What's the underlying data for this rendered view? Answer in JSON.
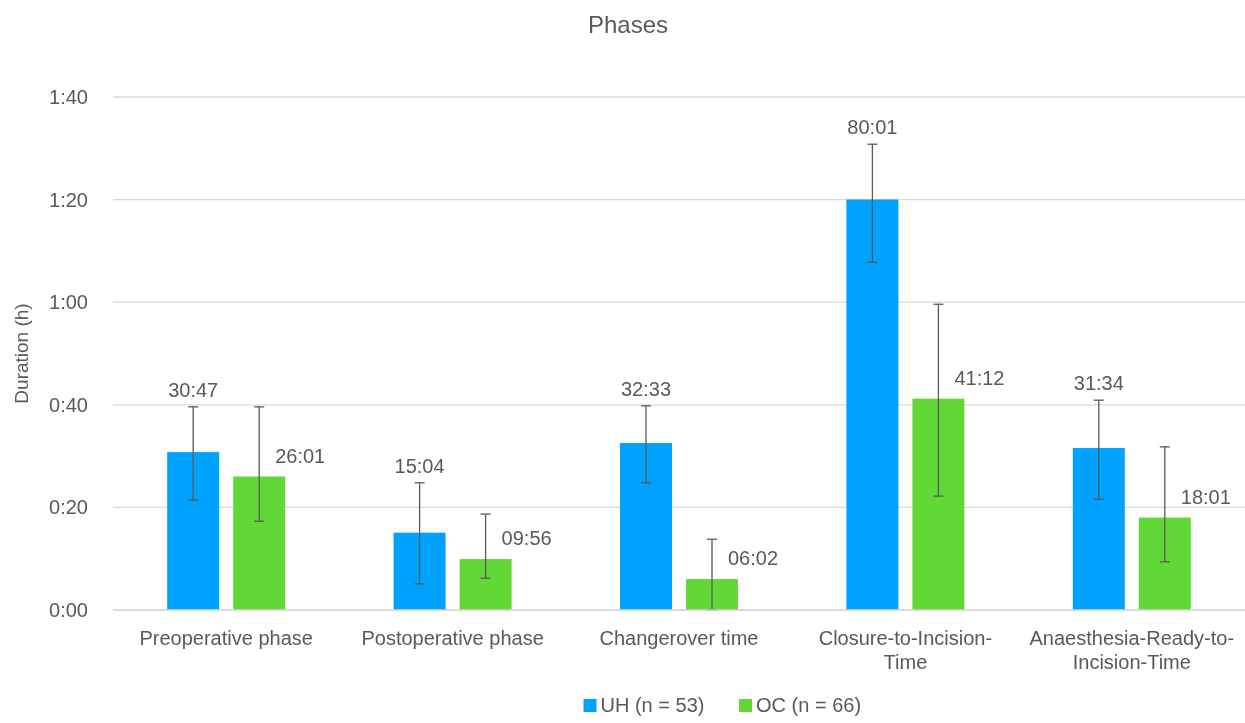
{
  "chart_data": {
    "type": "bar",
    "title": "Phases",
    "ylabel": "Duration (h)",
    "categories": [
      "Preoperative phase",
      "Postoperative phase",
      "Changerover time",
      "Closure-to-Incision-Time",
      "Anaesthesia-Ready-to-Incision-Time"
    ],
    "series": [
      {
        "name": "UH (n = 53)",
        "color": "#00a2ff",
        "values": [
          30.78,
          15.07,
          32.55,
          80.02,
          31.57
        ],
        "value_labels": [
          "30:47",
          "15:04",
          "32:33",
          "80:01",
          "31:34"
        ],
        "errors": [
          [
            21.4,
            39.6
          ],
          [
            5.1,
            24.8
          ],
          [
            24.8,
            39.8
          ],
          [
            67.8,
            90.8
          ],
          [
            21.6,
            40.9
          ]
        ]
      },
      {
        "name": "OC (n = 66)",
        "color": "#62d836",
        "values": [
          26.02,
          9.93,
          6.03,
          41.2,
          18.02
        ],
        "value_labels": [
          "26:01",
          "09:56",
          "06:02",
          "41:12",
          "18:01"
        ],
        "errors": [
          [
            17.3,
            39.6
          ],
          [
            6.2,
            18.7
          ],
          [
            0,
            13.8
          ],
          [
            22.2,
            59.6
          ],
          [
            9.4,
            31.8
          ]
        ]
      }
    ],
    "ylim": [
      0,
      100
    ],
    "yticks": [
      {
        "value": 0,
        "label": "0:00"
      },
      {
        "value": 20,
        "label": "0:20"
      },
      {
        "value": 40,
        "label": "0:40"
      },
      {
        "value": 60,
        "label": "1:00"
      },
      {
        "value": 80,
        "label": "1:20"
      },
      {
        "value": 100,
        "label": "1:40"
      }
    ],
    "grid": "y",
    "legend": "bottom"
  }
}
